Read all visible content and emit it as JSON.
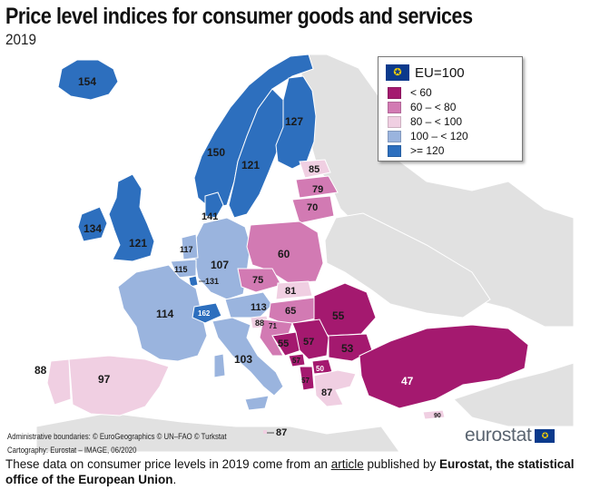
{
  "header": {
    "title": "Price level indices for consumer goods and services",
    "subtitle": "2019"
  },
  "legend": {
    "title": "EU=100",
    "flag_icon": "eu-flag-icon",
    "classes": [
      {
        "label": "< 60",
        "color": "#a4196f"
      },
      {
        "label": "60 – < 80",
        "color": "#d27ab3"
      },
      {
        "label": "80 – < 100",
        "color": "#f0cfe2"
      },
      {
        "label": "100 – < 120",
        "color": "#9ab4de"
      },
      {
        "label": ">= 120",
        "color": "#2d6fbe"
      }
    ]
  },
  "map_values": {
    "iceland": "154",
    "norway": "150",
    "sweden": "121",
    "finland": "127",
    "denmark": "141",
    "estonia": "85",
    "latvia": "79",
    "lithuania": "70",
    "ireland": "134",
    "uk": "121",
    "netherlands": "117",
    "belgium": "115",
    "luxembourg": "131",
    "germany": "107",
    "poland": "60",
    "czechia": "75",
    "slovakia": "81",
    "austria": "113",
    "hungary": "65",
    "france": "114",
    "switzerland": "162",
    "slovenia": "88",
    "croatia": "71",
    "bosnia": "55",
    "serbia": "57",
    "romania": "55",
    "bulgaria": "53",
    "montenegro": "57",
    "north_macedonia": "50",
    "albania": "57",
    "italy": "103",
    "greece": "87",
    "turkey": "47",
    "cyprus": "90",
    "portugal": "88",
    "spain": "97",
    "malta": "87"
  },
  "credits": {
    "line1": "Administrative boundaries: © EuroGeographics © UN–FAO © Turkstat",
    "line2": "Cartography: Eurostat – IMAGE, 06/2020"
  },
  "brand": {
    "name": "eurostat",
    "flag_icon": "eu-flag-icon"
  },
  "caption": {
    "part1": "These data on consumer price levels in 2019 come from an ",
    "link": "article",
    "part2": " published by ",
    "bold": "Eurostat, the statistical office of the European Union",
    "end": "."
  }
}
